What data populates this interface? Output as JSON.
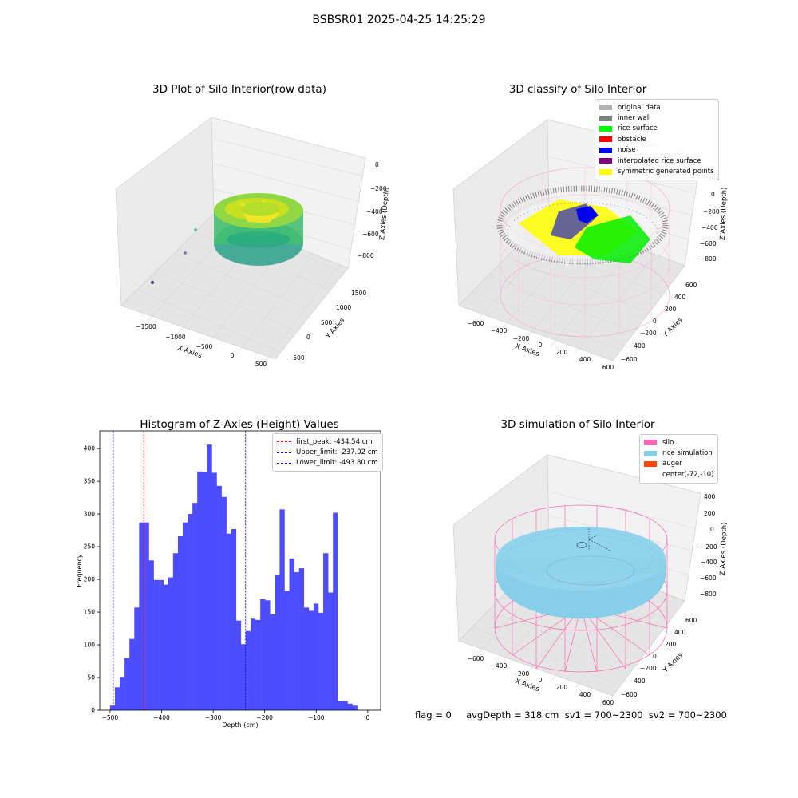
{
  "suptitle": "BSBSR01 2025-04-25 14:25:29",
  "footer": "flag = 0     avgDepth = 318 cm  sv1 = 700~2300  sv2 = 700~2300",
  "colors": {
    "hist_bar": "#4d4dff",
    "first_peak": "#ff0000",
    "limit_line": "#0000ff",
    "silo_wire": "#ff69b4",
    "rice_sim": "#87ceeb",
    "pane": "#f2f2f2",
    "grid": "#dddddd"
  },
  "chart_data": [
    {
      "type": "scatter3d",
      "title": "3D Plot of Silo Interior(row data)",
      "xlabel": "X Axies",
      "ylabel": "Y Axies",
      "zlabel": "Z Axies (Depth)",
      "xticks": [
        "−1500",
        "−1000",
        "−500",
        "0",
        "500"
      ],
      "yticks": [
        "−500",
        "0",
        "500",
        "1000",
        "1500"
      ],
      "zticks": [
        "0",
        "−200",
        "−400",
        "−600",
        "−800"
      ],
      "colormap": "viridis"
    },
    {
      "type": "scatter3d",
      "title": "3D classify of Silo Interior",
      "xlabel": "X Axies",
      "ylabel": "Y Axies",
      "zlabel": "Z Axies (Depth)",
      "xticks": [
        "−600",
        "−400",
        "−200",
        "0",
        "200",
        "400",
        "600"
      ],
      "yticks": [
        "−600",
        "−400",
        "−200",
        "0",
        "200",
        "400",
        "600"
      ],
      "zticks": [
        "200",
        "0",
        "−200",
        "−400",
        "−600",
        "−800"
      ],
      "legend": [
        {
          "label": "original data",
          "color": "#b3b3b3"
        },
        {
          "label": "inner wall",
          "color": "#808080"
        },
        {
          "label": "rice surface",
          "color": "#00ff00"
        },
        {
          "label": "obstacle",
          "color": "#ff0000"
        },
        {
          "label": "noise",
          "color": "#0000ff"
        },
        {
          "label": "interpolated rice surface",
          "color": "#800080"
        },
        {
          "label": "symmetric generated points",
          "color": "#ffff00"
        }
      ]
    },
    {
      "type": "bar",
      "title": "Histogram of Z-Axies (Height) Values",
      "xlabel": "Depth (cm)",
      "ylabel": "Frequency",
      "xlim": [
        -520,
        25
      ],
      "ylim": [
        0,
        427
      ],
      "xticks": [
        -500,
        -400,
        -300,
        -200,
        -100,
        0
      ],
      "yticks": [
        0,
        50,
        100,
        150,
        200,
        250,
        300,
        350,
        400
      ],
      "bin_start": -500,
      "bin_width": 9.4,
      "values": [
        7,
        35,
        51,
        80,
        109,
        157,
        287,
        287,
        229,
        199,
        199,
        192,
        203,
        240,
        266,
        287,
        300,
        317,
        365,
        364,
        406,
        363,
        343,
        326,
        270,
        277,
        137,
        101,
        121,
        140,
        138,
        170,
        168,
        147,
        207,
        307,
        183,
        232,
        211,
        217,
        157,
        152,
        163,
        149,
        240,
        180,
        302,
        14,
        14,
        10,
        7
      ],
      "vlines": [
        {
          "name": "first_peak",
          "label": "first_peak: -434.54 cm",
          "x": -434.54,
          "color": "#ff0000"
        },
        {
          "name": "upper-limit",
          "label": "Upper_limit: -237.02 cm",
          "x": -237.02,
          "color": "#0000ff"
        },
        {
          "name": "lower-limit",
          "label": "Lower_limit: -493.80 cm",
          "x": -493.8,
          "color": "#0000ff"
        }
      ],
      "legend_position": "upper right"
    },
    {
      "type": "surface3d",
      "title": "3D simulation of Silo Interior",
      "xlabel": "X Axies",
      "ylabel": "Y Axies",
      "zlabel": "Z Axies (Depth)",
      "xticks": [
        "−600",
        "−400",
        "−200",
        "0",
        "200",
        "400",
        "600"
      ],
      "yticks": [
        "−600",
        "−400",
        "−200",
        "0",
        "200",
        "400",
        "600"
      ],
      "zticks": [
        "400",
        "200",
        "0",
        "−200",
        "−400",
        "−600",
        "−800"
      ],
      "legend": [
        {
          "label": "silo",
          "color": "#ff69b4"
        },
        {
          "label": "rice simulation",
          "color": "#87ceeb"
        },
        {
          "label": "auger",
          "color": "#ff4500"
        },
        {
          "label": "center(-72,-10)",
          "color": ""
        }
      ]
    }
  ]
}
